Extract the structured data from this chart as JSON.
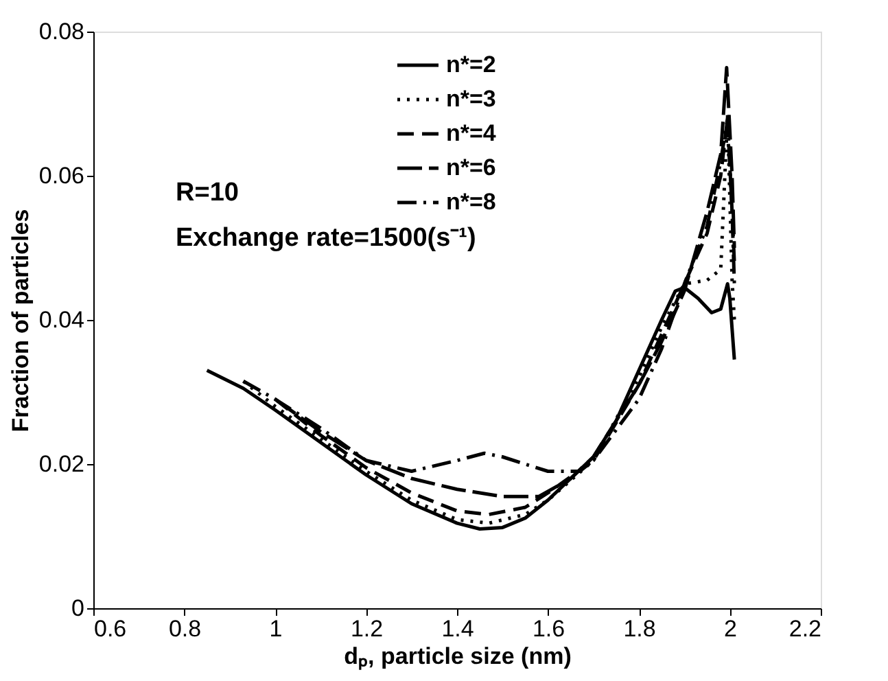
{
  "chart_data": {
    "type": "line",
    "xlabel": "dₚ, particle size (nm)",
    "ylabel": "Fraction of particles",
    "annotations": [
      "R=10",
      "Exchange rate=1500(s⁻¹)"
    ],
    "xlim": [
      0.6,
      2.2
    ],
    "xticks": [
      0.6,
      0.8,
      1,
      1.2,
      1.4,
      1.6,
      1.8,
      2,
      2.2
    ],
    "ylim": [
      0,
      0.08
    ],
    "yticks": [
      0,
      0.02,
      0.04,
      0.06,
      0.08
    ],
    "grid": false,
    "legend": "top",
    "marker": "none",
    "series": [
      {
        "name": "n*=2",
        "color": "#000000",
        "line_style": "solid",
        "x": [
          0.85,
          0.93,
          1.0,
          1.1,
          1.2,
          1.3,
          1.4,
          1.45,
          1.5,
          1.55,
          1.6,
          1.7,
          1.75,
          1.8,
          1.85,
          1.88,
          1.9,
          1.93,
          1.96,
          1.98,
          1.995,
          2.0,
          2.01
        ],
        "values": [
          0.033,
          0.0305,
          0.0275,
          0.023,
          0.0185,
          0.0145,
          0.0118,
          0.011,
          0.0112,
          0.0125,
          0.015,
          0.021,
          0.026,
          0.033,
          0.04,
          0.044,
          0.0445,
          0.043,
          0.041,
          0.0415,
          0.045,
          0.043,
          0.0345
        ]
      },
      {
        "name": "n*=3",
        "color": "#000000",
        "line_style": "dotted",
        "x": [
          0.93,
          1.0,
          1.1,
          1.2,
          1.3,
          1.4,
          1.47,
          1.55,
          1.6,
          1.7,
          1.8,
          1.85,
          1.9,
          1.95,
          1.98,
          1.995,
          2.005,
          2.01
        ],
        "values": [
          0.0315,
          0.028,
          0.0235,
          0.019,
          0.015,
          0.0123,
          0.0118,
          0.013,
          0.015,
          0.0205,
          0.032,
          0.039,
          0.045,
          0.0455,
          0.047,
          0.0685,
          0.0455,
          0.04
        ]
      },
      {
        "name": "n*=4",
        "color": "#000000",
        "line_style": "dashed",
        "x": [
          1.0,
          1.1,
          1.2,
          1.3,
          1.4,
          1.47,
          1.55,
          1.6,
          1.7,
          1.8,
          1.85,
          1.9,
          1.95,
          1.98,
          1.995,
          2.005,
          2.01
        ],
        "values": [
          0.029,
          0.024,
          0.0195,
          0.016,
          0.0135,
          0.013,
          0.014,
          0.016,
          0.0205,
          0.031,
          0.038,
          0.045,
          0.052,
          0.06,
          0.068,
          0.055,
          0.048
        ]
      },
      {
        "name": "n*=6",
        "color": "#000000",
        "line_style": "longdash",
        "x": [
          1.0,
          1.1,
          1.2,
          1.3,
          1.4,
          1.5,
          1.58,
          1.65,
          1.7,
          1.8,
          1.85,
          1.9,
          1.95,
          1.98,
          1.993,
          2.005,
          2.01
        ],
        "values": [
          0.029,
          0.0245,
          0.0205,
          0.018,
          0.0165,
          0.0155,
          0.0155,
          0.018,
          0.021,
          0.031,
          0.037,
          0.044,
          0.055,
          0.063,
          0.075,
          0.06,
          0.05
        ]
      },
      {
        "name": "n*=8",
        "color": "#000000",
        "line_style": "dashdot",
        "x": [
          0.93,
          1.0,
          1.1,
          1.2,
          1.3,
          1.4,
          1.46,
          1.5,
          1.6,
          1.67,
          1.7,
          1.8,
          1.85,
          1.9,
          1.95,
          1.98,
          1.995,
          2.005,
          2.01
        ],
        "values": [
          0.0315,
          0.029,
          0.025,
          0.0205,
          0.019,
          0.0205,
          0.0215,
          0.021,
          0.019,
          0.019,
          0.0205,
          0.029,
          0.036,
          0.045,
          0.053,
          0.062,
          0.068,
          0.055,
          0.045
        ]
      }
    ]
  }
}
